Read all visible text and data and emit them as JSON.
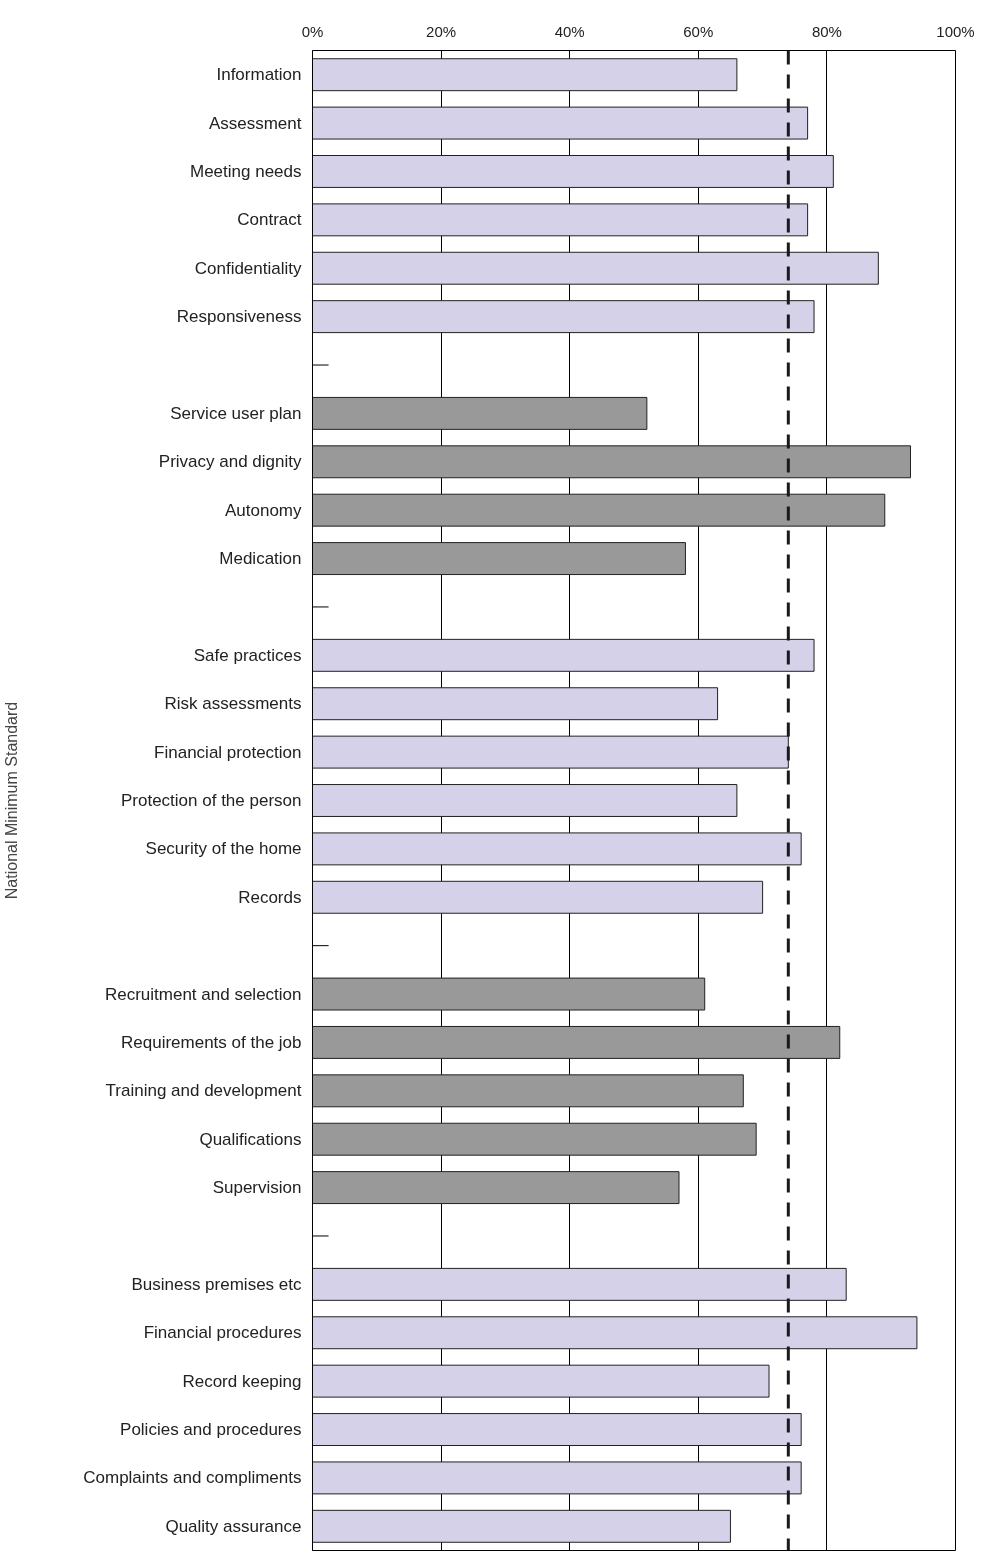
{
  "chart_data": {
    "type": "bar",
    "orientation": "horizontal",
    "ylabel": "National Minimum Standard",
    "categories": [
      "Information",
      "Assessment",
      "Meeting needs",
      "Contract",
      "Confidentiality",
      "Responsiveness",
      null,
      "Service user plan",
      "Privacy and dignity",
      "Autonomy",
      "Medication",
      null,
      "Safe practices",
      "Risk assessments",
      "Financial protection",
      "Protection of the person",
      "Security of the home",
      "Records",
      null,
      "Recruitment and selection",
      "Requirements of the job",
      "Training and development",
      "Qualifications",
      "Supervision",
      null,
      "Business premises etc",
      "Financial procedures",
      "Record keeping",
      "Policies and procedures",
      "Complaints and compliments",
      "Quality assurance"
    ],
    "values": [
      66,
      77,
      81,
      77,
      88,
      78,
      null,
      52,
      93,
      89,
      58,
      null,
      78,
      63,
      74,
      66,
      76,
      70,
      null,
      61,
      82,
      67,
      69,
      57,
      null,
      83,
      94,
      71,
      76,
      76,
      65
    ],
    "colors": [
      "#d4d1e8",
      "#d4d1e8",
      "#d4d1e8",
      "#d4d1e8",
      "#d4d1e8",
      "#d4d1e8",
      null,
      "#999999",
      "#999999",
      "#999999",
      "#999999",
      null,
      "#d4d1e8",
      "#d4d1e8",
      "#d4d1e8",
      "#d4d1e8",
      "#d4d1e8",
      "#d4d1e8",
      null,
      "#999999",
      "#999999",
      "#999999",
      "#999999",
      "#999999",
      null,
      "#d4d1e8",
      "#d4d1e8",
      "#d4d1e8",
      "#d4d1e8",
      "#d4d1e8",
      "#d4d1e8"
    ],
    "xlim": [
      0,
      100
    ],
    "xticks": [
      {
        "value": 0,
        "label": "0%"
      },
      {
        "value": 20,
        "label": "20%"
      },
      {
        "value": 40,
        "label": "40%"
      },
      {
        "value": 60,
        "label": "60%"
      },
      {
        "value": 80,
        "label": "80%"
      },
      {
        "value": 100,
        "label": "100%"
      }
    ],
    "ref_lines": [
      {
        "axis": "x",
        "value": 74,
        "label": null,
        "color": "#1a1a1a",
        "line_style": "dashed"
      }
    ],
    "grid": "x"
  }
}
